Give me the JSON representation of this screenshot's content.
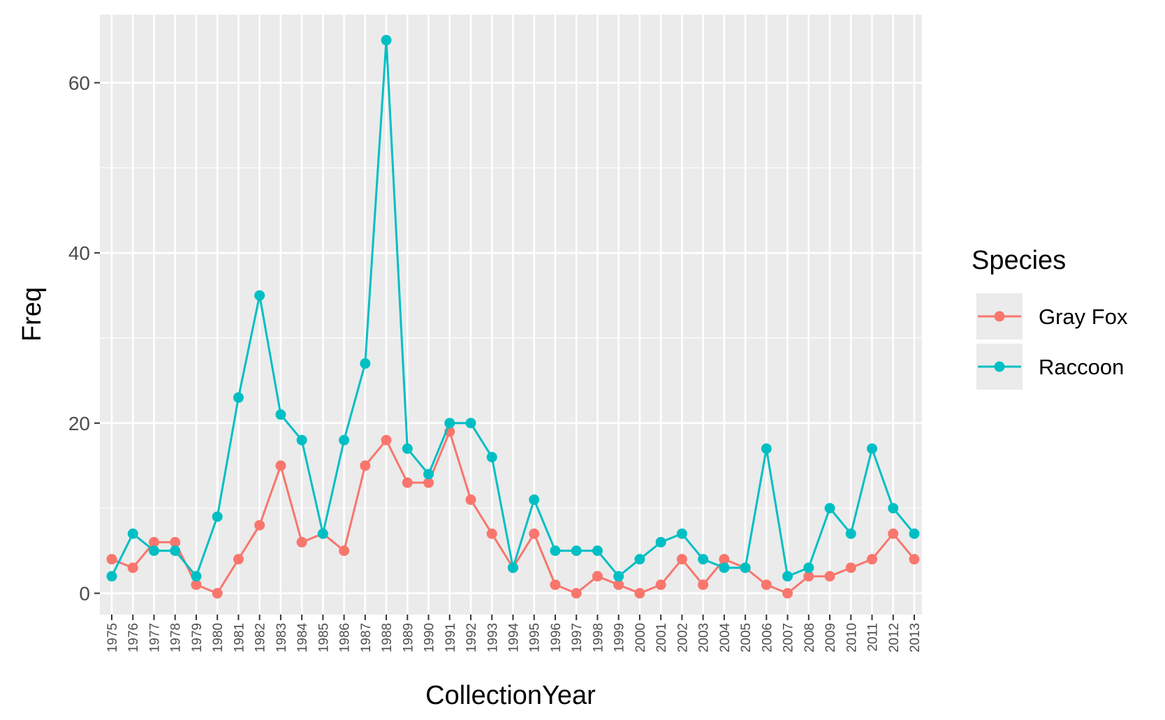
{
  "chart_data": {
    "type": "line",
    "xlabel": "CollectionYear",
    "ylabel": "Freq",
    "ylim": [
      -2.5,
      68
    ],
    "y_ticks": [
      0,
      20,
      40,
      60
    ],
    "y_tick_labels": [
      "0",
      "20",
      "40",
      "60"
    ],
    "categories": [
      "1975",
      "1976",
      "1977",
      "1978",
      "1979",
      "1980",
      "1981",
      "1982",
      "1983",
      "1984",
      "1985",
      "1986",
      "1987",
      "1988",
      "1989",
      "1990",
      "1991",
      "1992",
      "1993",
      "1994",
      "1995",
      "1996",
      "1997",
      "1998",
      "1999",
      "2000",
      "2001",
      "2002",
      "2003",
      "2004",
      "2005",
      "2006",
      "2007",
      "2008",
      "2009",
      "2010",
      "2011",
      "2012",
      "2013"
    ],
    "grid": true,
    "legend": {
      "title": "Species",
      "position": "right"
    },
    "series": [
      {
        "name": "Gray Fox",
        "color": "#F8766D",
        "values": [
          4,
          3,
          6,
          6,
          1,
          0,
          4,
          8,
          15,
          6,
          7,
          5,
          15,
          18,
          13,
          13,
          19,
          11,
          7,
          3,
          7,
          1,
          0,
          2,
          1,
          0,
          1,
          4,
          1,
          4,
          3,
          1,
          0,
          2,
          2,
          3,
          4,
          7,
          4
        ]
      },
      {
        "name": "Raccoon",
        "color": "#00BFC4",
        "values": [
          2,
          7,
          5,
          5,
          2,
          9,
          23,
          35,
          21,
          18,
          7,
          18,
          27,
          65,
          17,
          14,
          20,
          20,
          16,
          3,
          11,
          5,
          5,
          5,
          2,
          4,
          6,
          7,
          4,
          3,
          3,
          17,
          2,
          3,
          10,
          7,
          17,
          10,
          7
        ]
      }
    ]
  }
}
